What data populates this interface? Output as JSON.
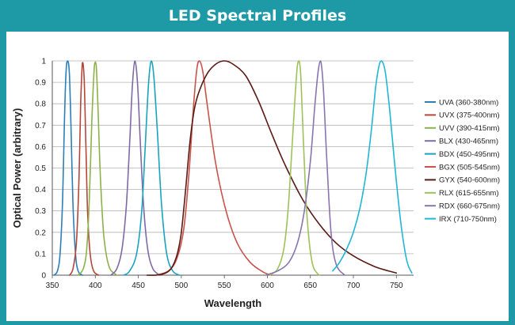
{
  "chart_data": {
    "type": "line",
    "title": "LED Spectral Profiles",
    "xlabel": "Wavelength",
    "ylabel": "Optical Power (arbitrary)",
    "xlim": [
      350,
      770
    ],
    "ylim": [
      0,
      1
    ],
    "x_ticks": [
      "350",
      "400",
      "450",
      "500",
      "550",
      "600",
      "650",
      "700",
      "750"
    ],
    "y_ticks": [
      "0",
      "0.1",
      "0.2",
      "0.3",
      "0.4",
      "0.5",
      "0.6",
      "0.7",
      "0.8",
      "0.9",
      "1"
    ],
    "grid": true,
    "legend_position": "right",
    "series": [
      {
        "name": "UVA (360-380nm)",
        "color": "#2c7fb8",
        "x": [
          352,
          356,
          359,
          362,
          364,
          366,
          368,
          370,
          372,
          374,
          377,
          380,
          385
        ],
        "y": [
          0,
          0.02,
          0.1,
          0.35,
          0.7,
          0.95,
          1,
          0.93,
          0.65,
          0.33,
          0.1,
          0.02,
          0
        ]
      },
      {
        "name": "UVX (375-400nm)",
        "color": "#b5473a",
        "x": [
          370,
          374,
          378,
          381,
          383,
          385,
          387,
          389,
          391,
          394,
          398,
          404
        ],
        "y": [
          0,
          0.03,
          0.15,
          0.45,
          0.8,
          0.99,
          0.92,
          0.62,
          0.3,
          0.1,
          0.02,
          0
        ]
      },
      {
        "name": "UVV (390-415nm)",
        "color": "#8db24a",
        "x": [
          380,
          386,
          390,
          393,
          396,
          399,
          401,
          403,
          406,
          410,
          416,
          425
        ],
        "y": [
          0,
          0.03,
          0.12,
          0.35,
          0.72,
          0.98,
          0.98,
          0.8,
          0.45,
          0.18,
          0.04,
          0
        ]
      },
      {
        "name": "BLX (430-465nm)",
        "color": "#7d6aa6",
        "x": [
          418,
          425,
          431,
          436,
          440,
          443,
          446,
          449,
          452,
          456,
          461,
          467,
          475
        ],
        "y": [
          0,
          0.03,
          0.12,
          0.32,
          0.62,
          0.88,
          1,
          0.9,
          0.65,
          0.33,
          0.12,
          0.03,
          0
        ]
      },
      {
        "name": "BDX (450-495nm)",
        "color": "#19a3c1",
        "x": [
          433,
          440,
          448,
          454,
          458,
          462,
          465,
          468,
          472,
          477,
          483,
          490,
          498
        ],
        "y": [
          0,
          0.02,
          0.1,
          0.3,
          0.6,
          0.9,
          1,
          0.93,
          0.68,
          0.33,
          0.1,
          0.02,
          0
        ]
      },
      {
        "name": "BGX (505-545nm)",
        "color": "#c9524a",
        "x": [
          470,
          485,
          495,
          503,
          509,
          514,
          518,
          521,
          525,
          530,
          540,
          552,
          565,
          580,
          595,
          605
        ],
        "y": [
          0,
          0.02,
          0.08,
          0.22,
          0.48,
          0.78,
          0.96,
          1,
          0.95,
          0.8,
          0.52,
          0.3,
          0.15,
          0.06,
          0.015,
          0
        ]
      },
      {
        "name": "GYX (540-600nm)",
        "color": "#5b1a14",
        "x": [
          460,
          470,
          478,
          484,
          488,
          492,
          496,
          500,
          505,
          510,
          515,
          520,
          530,
          540,
          550,
          560,
          575,
          590,
          605,
          620,
          640,
          660,
          680,
          700,
          725,
          750
        ],
        "y": [
          0,
          0,
          0.005,
          0.015,
          0.03,
          0.06,
          0.11,
          0.2,
          0.4,
          0.62,
          0.77,
          0.85,
          0.94,
          0.985,
          1,
          0.985,
          0.93,
          0.81,
          0.66,
          0.52,
          0.36,
          0.24,
          0.15,
          0.09,
          0.04,
          0.01
        ]
      },
      {
        "name": "RLX (615-655nm)",
        "color": "#9dc25a",
        "x": [
          603,
          612,
          619,
          624,
          628,
          632,
          635,
          637,
          639,
          642,
          646,
          652,
          660
        ],
        "y": [
          0,
          0.03,
          0.12,
          0.3,
          0.55,
          0.82,
          0.98,
          1,
          0.92,
          0.62,
          0.28,
          0.06,
          0
        ]
      },
      {
        "name": "RDX (660-675nm)",
        "color": "#8a74ad",
        "x": [
          598,
          612,
          625,
          635,
          643,
          650,
          655,
          659,
          662,
          665,
          669,
          674,
          680,
          690
        ],
        "y": [
          0,
          0.02,
          0.06,
          0.15,
          0.3,
          0.53,
          0.78,
          0.95,
          1,
          0.88,
          0.55,
          0.2,
          0.05,
          0
        ]
      },
      {
        "name": "IRX (710-750nm)",
        "color": "#21b6d4",
        "x": [
          676,
          684,
          692,
          700,
          708,
          715,
          721,
          726,
          730,
          733,
          737,
          742,
          748,
          755,
          762,
          768
        ],
        "y": [
          0.02,
          0.06,
          0.12,
          0.2,
          0.32,
          0.48,
          0.68,
          0.88,
          0.98,
          1,
          0.95,
          0.78,
          0.52,
          0.25,
          0.07,
          0.01
        ]
      }
    ]
  }
}
